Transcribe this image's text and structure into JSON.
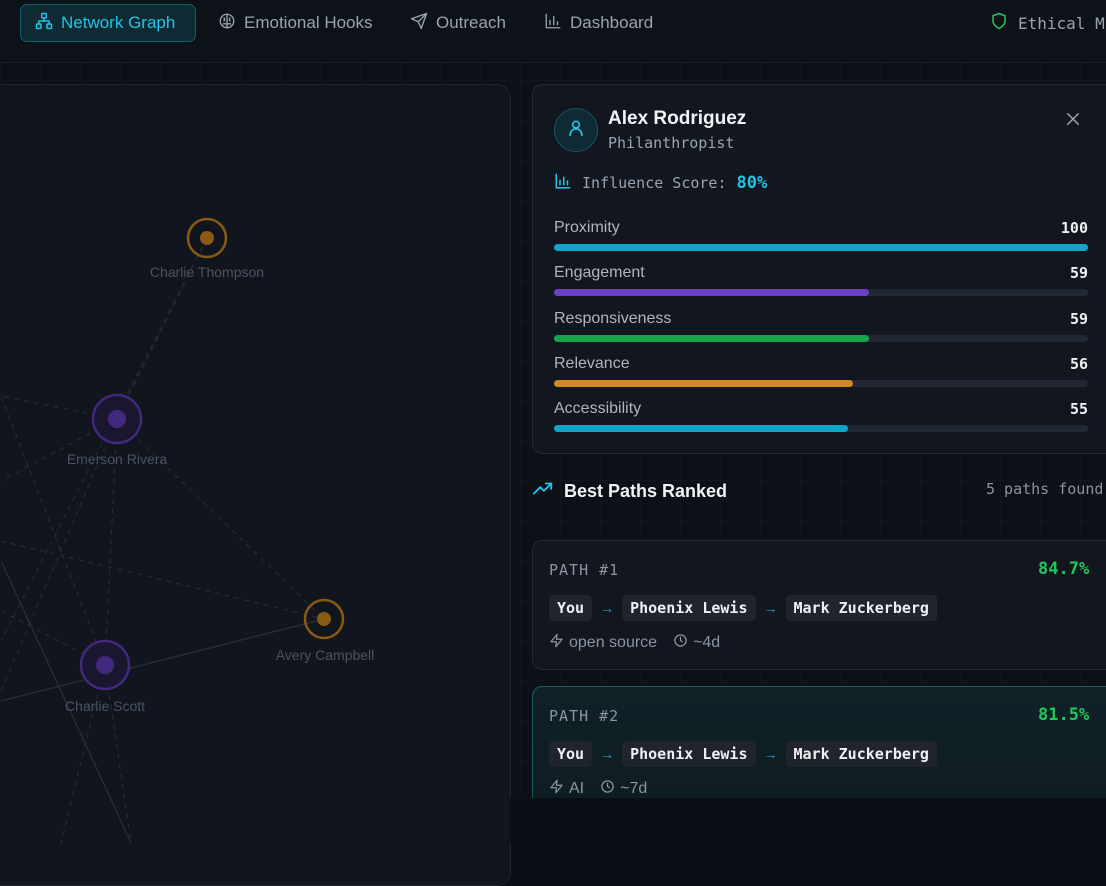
{
  "nav": {
    "items": [
      {
        "label": "Network Graph",
        "icon": "network-icon",
        "active": true
      },
      {
        "label": "Emotional Hooks",
        "icon": "brain-icon",
        "active": false
      },
      {
        "label": "Outreach",
        "icon": "send-icon",
        "active": false
      },
      {
        "label": "Dashboard",
        "icon": "bar-chart-icon",
        "active": false
      }
    ],
    "ethical_label": "Ethical M"
  },
  "graph": {
    "nodes": [
      {
        "label": "Charlie Thompson",
        "color": "#d08a1e"
      },
      {
        "label": "Emerson Rivera",
        "color": "#6d3fc6"
      },
      {
        "label": "Avery Campbell",
        "color": "#d08a1e"
      },
      {
        "label": "Charlie Scott",
        "color": "#6d3fc6"
      }
    ]
  },
  "profile": {
    "name": "Alex Rodriguez",
    "role": "Philanthropist",
    "influence_label": "Influence Score:",
    "influence_value": "80%",
    "metrics": [
      {
        "label": "Proximity",
        "value": 100,
        "color": "#0ea5c8"
      },
      {
        "label": "Engagement",
        "value": 59,
        "color": "#6d3fc6"
      },
      {
        "label": "Responsiveness",
        "value": 59,
        "color": "#16a34a"
      },
      {
        "label": "Relevance",
        "value": 56,
        "color": "#d08a1e"
      },
      {
        "label": "Accessibility",
        "value": 55,
        "color": "#0ea5c8"
      }
    ]
  },
  "best_paths": {
    "title": "Best Paths Ranked",
    "count_text": "5 paths found",
    "paths": [
      {
        "label": "PATH #1",
        "score": "84.7%",
        "chain": [
          "You",
          "Phoenix Lewis",
          "Mark Zuckerberg"
        ],
        "topic": "open source",
        "time": "~4d"
      },
      {
        "label": "PATH #2",
        "score": "81.5%",
        "chain": [
          "You",
          "Phoenix Lewis",
          "Mark Zuckerberg"
        ],
        "topic": "AI",
        "time": "~7d"
      }
    ]
  },
  "colors": {
    "accent": "#22c4e8",
    "success": "#22c55e"
  }
}
